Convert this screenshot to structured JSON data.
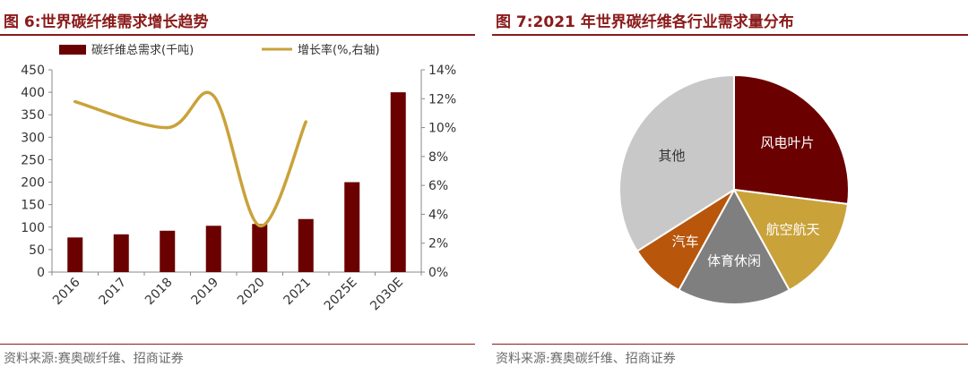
{
  "left": {
    "figure_title": "图 6:世界碳纤维需求增长趋势",
    "source": "资料来源:赛奥碳纤维、招商证券"
  },
  "right": {
    "figure_title": "图 7:2021 年世界碳纤维各行业需求量分布",
    "source": "资料来源:赛奥碳纤维、招商证券"
  },
  "colors": {
    "accent": "#8B1A1A",
    "bar": "#6B0000",
    "line": "#C9A23A",
    "axis": "#888888"
  },
  "chart_data": [
    {
      "type": "bar",
      "title": "",
      "categories": [
        "2016",
        "2017",
        "2018",
        "2019",
        "2020",
        "2021",
        "2025E",
        "2030E"
      ],
      "series": [
        {
          "name": "碳纤维总需求(千吨)",
          "type": "bar",
          "axis": "left",
          "values": [
            77,
            84,
            92,
            103,
            107,
            118,
            200,
            400
          ]
        },
        {
          "name": "增长率(%,右轴)",
          "type": "line",
          "axis": "right",
          "values": [
            11.8,
            null,
            10.0,
            12.2,
            3.2,
            10.4,
            null,
            null
          ]
        }
      ],
      "y_left": {
        "min": 0,
        "max": 450,
        "step": 50
      },
      "y_right": {
        "min": 0,
        "max": 14,
        "step": 2,
        "unit": "%"
      },
      "legend": "top"
    },
    {
      "type": "pie",
      "title": "",
      "slices": [
        {
          "label": "风电叶片",
          "value": 27,
          "color": "#6B0000"
        },
        {
          "label": "航空航天",
          "value": 15,
          "color": "#C9A23A"
        },
        {
          "label": "体育休闲",
          "value": 16,
          "color": "#7F7F7F"
        },
        {
          "label": "汽车",
          "value": 8,
          "color": "#B8560B"
        },
        {
          "label": "其他",
          "value": 34,
          "color": "#C8C8C8"
        }
      ]
    }
  ]
}
